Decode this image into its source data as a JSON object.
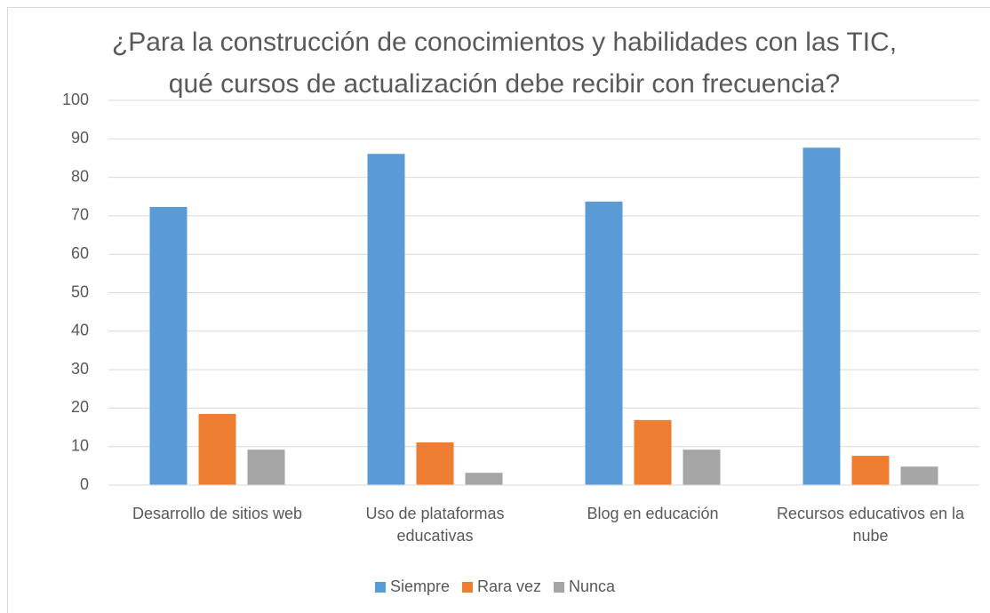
{
  "chart_data": {
    "type": "bar",
    "title": "¿Para la construcción de conocimientos y habilidades con las TIC, qué cursos de actualización debe recibir con frecuencia?",
    "categories": [
      "Desarrollo de sitios web",
      "Uso de plataformas educativas",
      "Blog en educación",
      "Recursos educativos en la nube"
    ],
    "series": [
      {
        "name": "Siempre",
        "color": "#5b9bd5",
        "values": [
          72.3,
          86.1,
          73.7,
          87.7
        ]
      },
      {
        "name": "Rara vez",
        "color": "#ed7d31",
        "values": [
          18.5,
          11.1,
          16.9,
          7.6
        ]
      },
      {
        "name": "Nunca",
        "color": "#a5a5a5",
        "values": [
          9.2,
          3.2,
          9.2,
          4.8
        ]
      }
    ],
    "ylim": [
      0,
      100
    ],
    "yticks": [
      0,
      10,
      20,
      30,
      40,
      50,
      60,
      70,
      80,
      90,
      100
    ],
    "grid": true,
    "legend": "bottom"
  }
}
